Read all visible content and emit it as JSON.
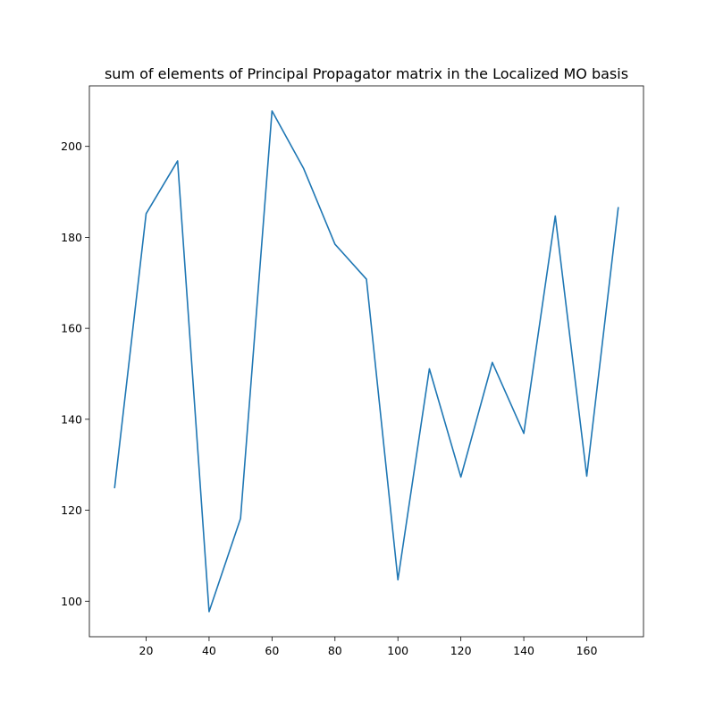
{
  "chart_data": {
    "type": "line",
    "title": "sum of elements of Principal Propagator matrix in the Localized MO basis",
    "xlabel": "",
    "ylabel": "",
    "x": [
      10,
      20,
      30,
      40,
      50,
      60,
      70,
      80,
      90,
      100,
      110,
      120,
      130,
      140,
      150,
      160,
      170
    ],
    "series": [
      {
        "values": [
          125.0,
          185.2,
          196.8,
          97.7,
          118.2,
          207.8,
          195.2,
          178.5,
          170.8,
          104.7,
          151.1,
          127.3,
          152.5,
          136.9,
          184.7,
          127.5,
          186.5
        ],
        "color": "#1f77b4"
      }
    ],
    "xticks": [
      20,
      40,
      60,
      80,
      100,
      120,
      140,
      160
    ],
    "yticks": [
      100,
      120,
      140,
      160,
      180,
      200
    ],
    "xlim": [
      1.97,
      178.03
    ],
    "ylim": [
      92.19,
      213.31
    ],
    "grid": false,
    "legend": "none"
  }
}
